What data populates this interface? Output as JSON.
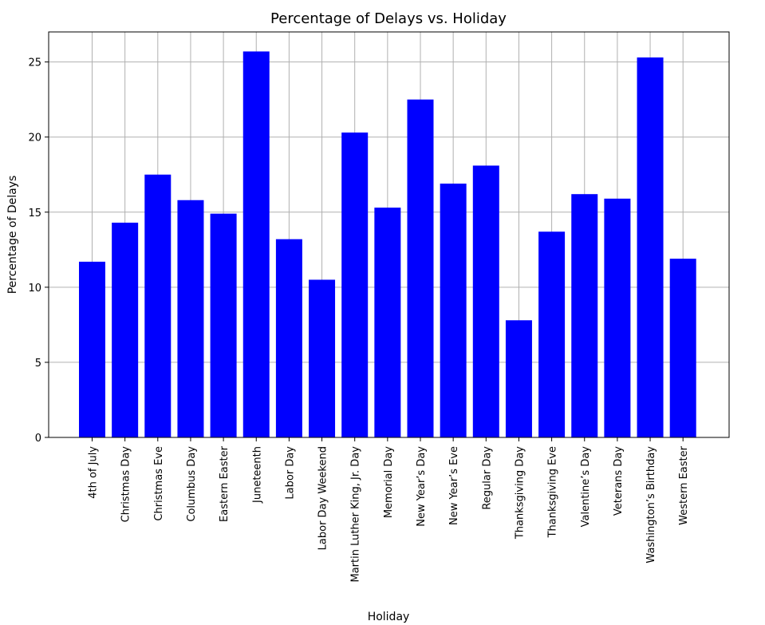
{
  "chart_data": {
    "type": "bar",
    "title": "Percentage of Delays vs. Holiday",
    "xlabel": "Holiday",
    "ylabel": "Percentage of Delays",
    "categories": [
      "4th of July",
      "Christmas Day",
      "Christmas Eve",
      "Columbus Day",
      "Eastern Easter",
      "Juneteenth",
      "Labor Day",
      "Labor Day Weekend",
      "Martin Luther King, Jr. Day",
      "Memorial Day",
      "New Year’s Day",
      "New Year’s Eve",
      "Regular Day",
      "Thanksgiving Day",
      "Thanksgiving Eve",
      "Valentine’s Day",
      "Veterans Day",
      "Washington’s Birthday",
      "Western Easter"
    ],
    "values": [
      11.7,
      14.3,
      17.5,
      15.8,
      14.9,
      25.7,
      13.2,
      10.5,
      20.3,
      15.3,
      22.5,
      16.9,
      18.1,
      7.8,
      13.7,
      16.2,
      15.9,
      25.3,
      11.9
    ],
    "ylim": [
      0,
      27
    ],
    "yticks": [
      0,
      5,
      10,
      15,
      20,
      25
    ],
    "grid": true,
    "bar_color": "#0000ff"
  }
}
